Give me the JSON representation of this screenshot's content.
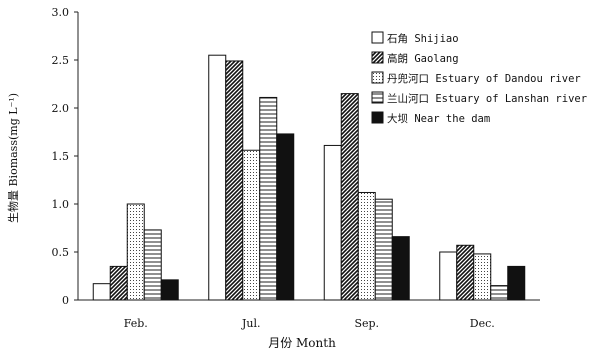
{
  "chart_data": {
    "type": "bar",
    "xlabel": "月份 Month",
    "ylabel": "生物量 Biomass(mg L⁻¹)",
    "ylim": [
      0,
      3.0
    ],
    "yticks": [
      "0",
      "0.5",
      "1.0",
      "1.5",
      "2.0",
      "2.5",
      "3.0"
    ],
    "categories": [
      "Feb.",
      "Jul.",
      "Sep.",
      "Dec."
    ],
    "legend_position": "top-right",
    "series": [
      {
        "name": "石角 Shijiao",
        "pattern": "white",
        "values": [
          0.17,
          2.55,
          1.61,
          0.5
        ]
      },
      {
        "name": "高朗 Gaolang",
        "pattern": "diagonal",
        "values": [
          0.35,
          2.49,
          2.15,
          0.57
        ]
      },
      {
        "name": "丹兜河口 Estuary of Dandou river",
        "pattern": "dots",
        "values": [
          1.0,
          1.56,
          1.12,
          0.48
        ]
      },
      {
        "name": "兰山河口 Estuary of Lanshan river",
        "pattern": "hlines",
        "values": [
          0.73,
          2.11,
          1.05,
          0.15
        ]
      },
      {
        "name": "大坝 Near the dam",
        "pattern": "solid",
        "values": [
          0.21,
          1.73,
          0.66,
          0.35
        ]
      }
    ]
  }
}
